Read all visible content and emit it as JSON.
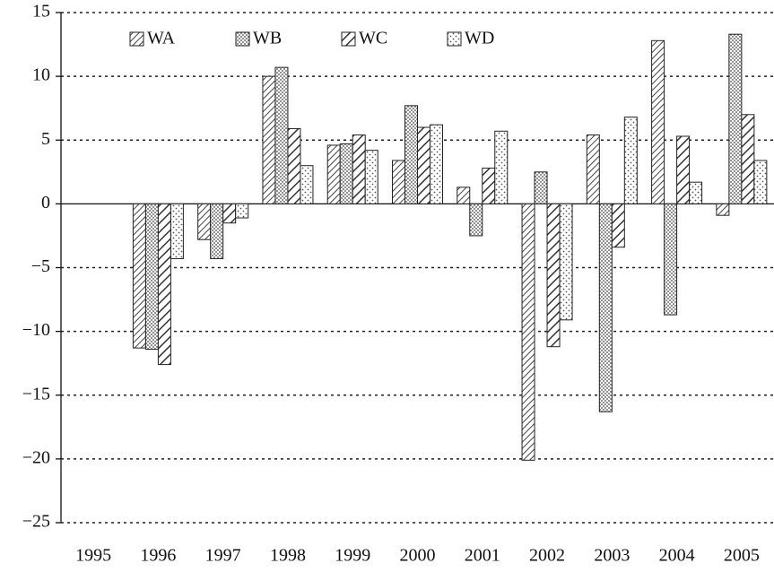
{
  "chart_data": {
    "type": "bar",
    "categories": [
      "1995",
      "1996",
      "1997",
      "1998",
      "1999",
      "2000",
      "2001",
      "2002",
      "2003",
      "2004",
      "2005"
    ],
    "series": [
      {
        "name": "WA",
        "pattern": "hatch-thin",
        "color": "#555555",
        "values": [
          0,
          -11.3,
          -2.8,
          10.0,
          4.6,
          3.4,
          1.3,
          -20.1,
          5.4,
          12.8,
          -0.9
        ]
      },
      {
        "name": "WB",
        "pattern": "dots-dense",
        "color": "#555555",
        "values": [
          0,
          -11.4,
          -4.3,
          10.7,
          4.7,
          7.7,
          -2.5,
          2.5,
          -16.3,
          -8.7,
          13.3
        ]
      },
      {
        "name": "WC",
        "pattern": "hatch-wide",
        "color": "#555555",
        "values": [
          0,
          -12.6,
          -1.5,
          5.9,
          5.4,
          6.0,
          2.8,
          -11.2,
          -3.4,
          5.3,
          7.0
        ]
      },
      {
        "name": "WD",
        "pattern": "dots-sparse",
        "color": "#555555",
        "values": [
          0,
          -4.3,
          -1.1,
          3.0,
          4.2,
          6.2,
          5.7,
          -9.1,
          6.8,
          1.7,
          3.4
        ]
      }
    ],
    "ylim": [
      -25,
      15
    ],
    "yticks": [
      {
        "value": -25,
        "label": "−25"
      },
      {
        "value": -20,
        "label": "−20"
      },
      {
        "value": -15,
        "label": "−15"
      },
      {
        "value": -10,
        "label": "−10"
      },
      {
        "value": -5,
        "label": "−5"
      },
      0,
      5,
      10,
      15
    ],
    "grid": true,
    "legend": "upper left"
  }
}
